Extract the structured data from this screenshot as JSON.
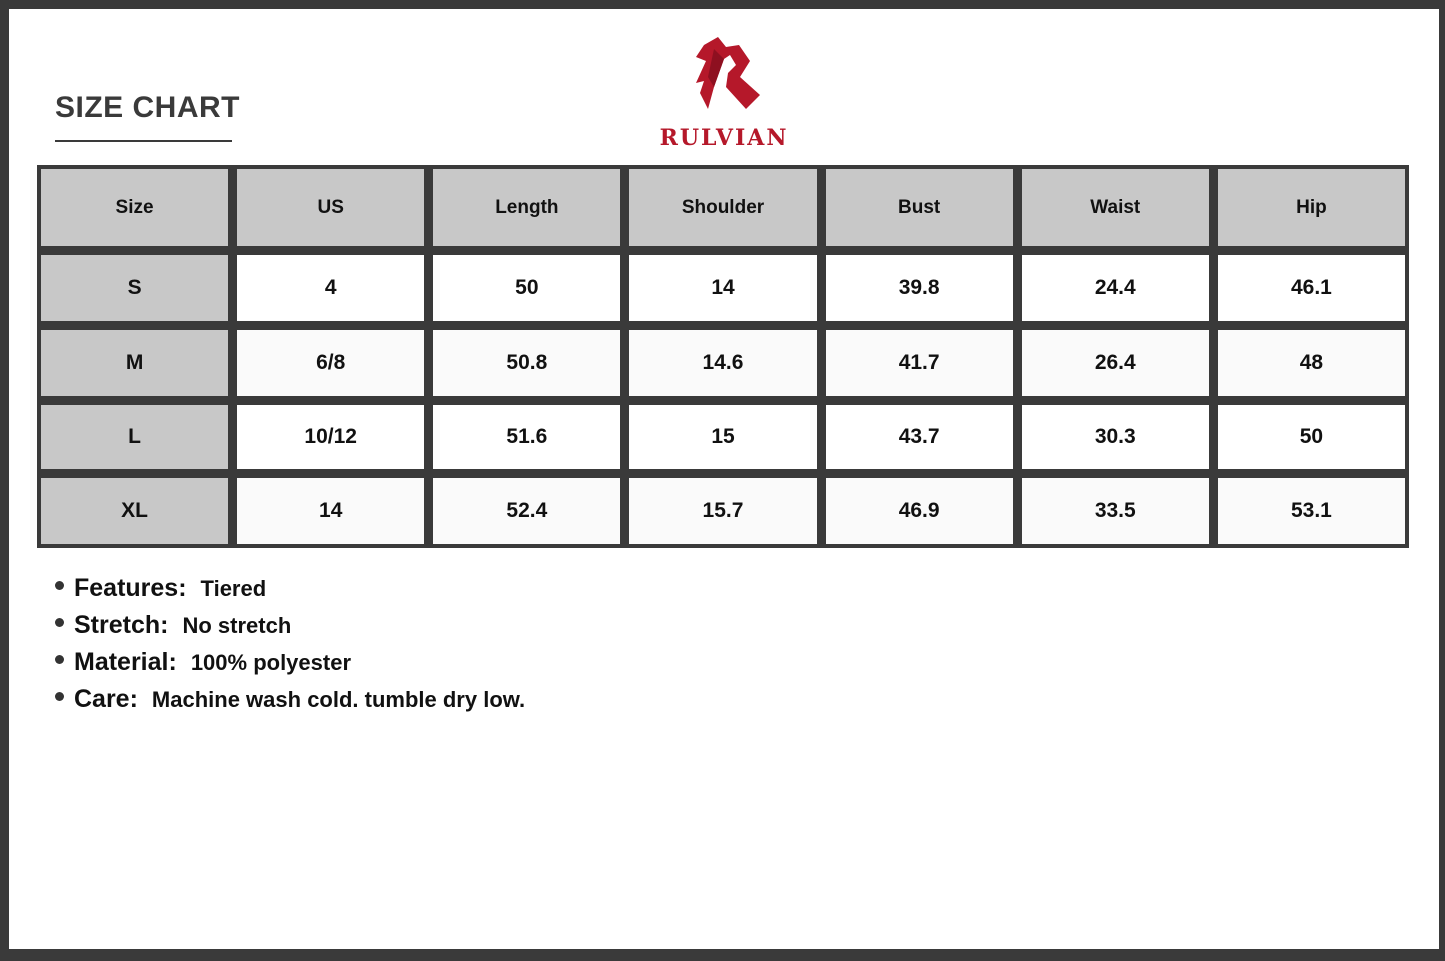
{
  "title": "SIZE CHART",
  "brand": {
    "name": "RULVIAN",
    "color": "#b5182a"
  },
  "table": {
    "headers": [
      "Size",
      "US",
      "Length",
      "Shoulder",
      "Bust",
      "Waist",
      "Hip"
    ],
    "rows": [
      [
        "S",
        "4",
        "50",
        "14",
        "39.8",
        "24.4",
        "46.1"
      ],
      [
        "M",
        "6/8",
        "50.8",
        "14.6",
        "41.7",
        "26.4",
        "48"
      ],
      [
        "L",
        "10/12",
        "51.6",
        "15",
        "43.7",
        "30.3",
        "50"
      ],
      [
        "XL",
        "14",
        "52.4",
        "15.7",
        "46.9",
        "33.5",
        "53.1"
      ]
    ]
  },
  "specs": [
    {
      "label": "Features:",
      "value": "Tiered"
    },
    {
      "label": "Stretch:",
      "value": "No stretch"
    },
    {
      "label": "Material:",
      "value": "100% polyester"
    },
    {
      "label": "Care:",
      "value": "Machine wash cold. tumble dry low."
    }
  ]
}
